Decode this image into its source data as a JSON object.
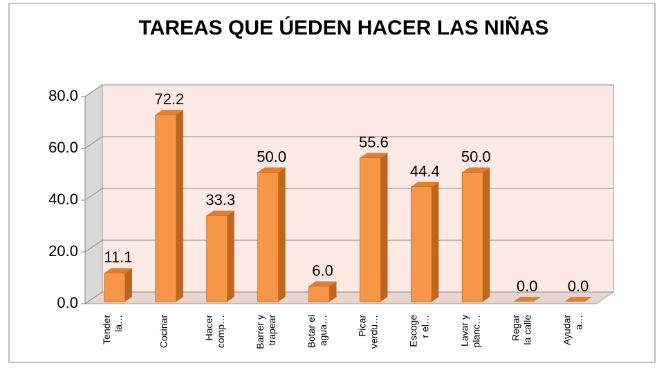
{
  "chart_data": {
    "type": "bar3d",
    "title": "TAREAS QUE ÚEDEN HACER LAS NIÑAS",
    "categories": [
      [
        "Tender",
        "la…"
      ],
      [
        "Cocinar"
      ],
      [
        "Hacer",
        "comp…"
      ],
      [
        "Barrer y",
        "trapear"
      ],
      [
        "Botar el",
        "agua…"
      ],
      [
        "Picar",
        "verdu…"
      ],
      [
        "Escoge",
        "r el…"
      ],
      [
        "Lavar y",
        "planc…"
      ],
      [
        "Regar",
        "la calle"
      ],
      [
        "Ayudar",
        "a…"
      ]
    ],
    "values": [
      11.1,
      72.2,
      33.3,
      50.0,
      6.0,
      55.6,
      44.4,
      50.0,
      0.0,
      0.0
    ],
    "value_labels": [
      "11.1",
      "72.2",
      "33.3",
      "50.0",
      "6.0",
      "55.6",
      "44.4",
      "50.0",
      "0.0",
      "0.0"
    ],
    "color": "#f79646",
    "ylim": [
      0,
      80
    ],
    "yticks": [
      {
        "value": 0,
        "label": "0.0"
      },
      {
        "value": 20,
        "label": "20.0"
      },
      {
        "value": 40,
        "label": "40.0"
      },
      {
        "value": 60,
        "label": "60.0"
      },
      {
        "value": 80,
        "label": "80.0"
      }
    ],
    "grid": true
  }
}
